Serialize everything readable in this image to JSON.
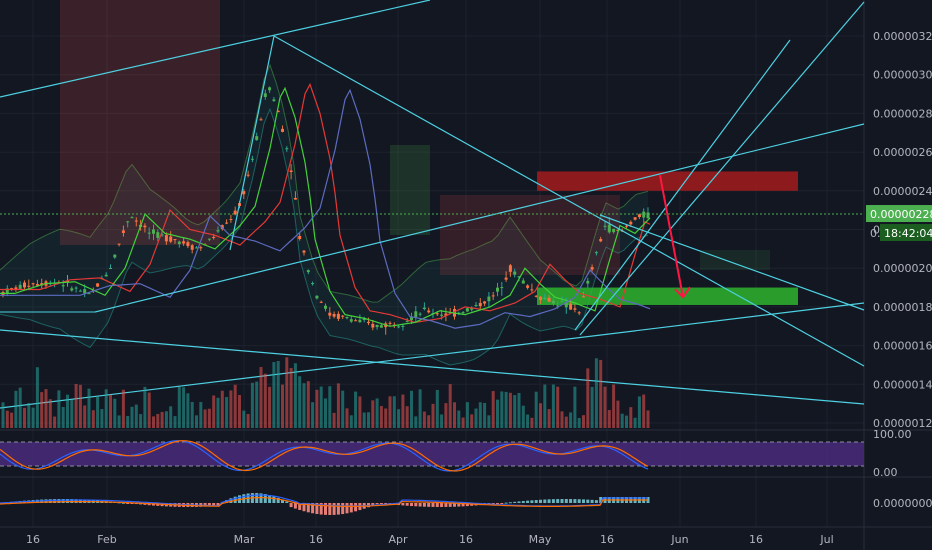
{
  "chart_data": {
    "type": "candlestick",
    "colors": {
      "background": "#131722",
      "grid": "#1e222d",
      "up": "#26a69a",
      "down": "#ef5350",
      "accent_green": "#4caf50",
      "trendline": "#4dd0e1",
      "arrow": "#ff1744",
      "rsi_band": "#4a2a7a"
    },
    "price_panel": {
      "y_ticks": [
        "0.00000320",
        "0.00000300",
        "0.00000280",
        "0.00000260",
        "0.00000240",
        "0.00000220",
        "0.00000200",
        "0.00000180",
        "0.00000160",
        "0.00000140",
        "0.00000120"
      ],
      "ylim": [
        1.15e-06,
        3.35e-06
      ],
      "last_price": "0.00000228",
      "countdown": "18:42:04",
      "partial_tick": "0."
    },
    "x_ticks": [
      "16",
      "Feb",
      "Mar",
      "16",
      "Apr",
      "16",
      "May",
      "16",
      "Jun",
      "16",
      "Jul"
    ],
    "rsi_panel": {
      "ticks": [
        "100.00",
        "0.00"
      ],
      "upper_level": 80,
      "lower_level": 20
    },
    "macd_panel": {
      "ticks": [
        "0.00000000"
      ]
    },
    "annotations": {
      "resistance_zone": [
        2.4e-06,
        2.5e-06
      ],
      "support_zone": [
        1.81e-06,
        1.9e-06
      ],
      "arrow_from": 2.48e-06,
      "arrow_to": 1.85e-06
    }
  }
}
